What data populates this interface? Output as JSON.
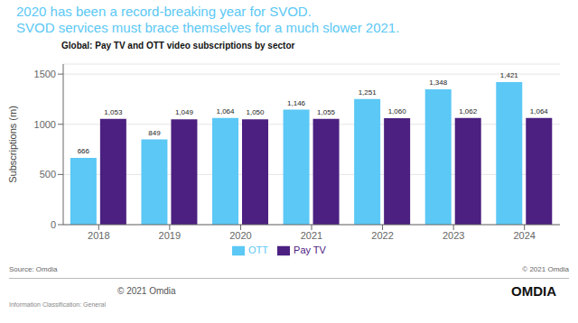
{
  "chart_data": {
    "type": "bar",
    "title": "2020 has been a record-breaking year for SVOD.\nSVOD services must brace themselves for a much slower 2021.",
    "subtitle": "Global: Pay TV and OTT video subscriptions by sector",
    "categories": [
      "2018",
      "2019",
      "2020",
      "2021",
      "2022",
      "2023",
      "2024"
    ],
    "series": [
      {
        "name": "OTT",
        "color": "#5BC8F5",
        "values": [
          666,
          849,
          1064,
          1146,
          1251,
          1348,
          1421
        ],
        "value_labels": [
          "666",
          "849",
          "1,064",
          "1,146",
          "1,251",
          "1,348",
          "1,421"
        ]
      },
      {
        "name": "Pay TV",
        "color": "#4B2080",
        "values": [
          1053,
          1049,
          1050,
          1055,
          1060,
          1062,
          1064
        ],
        "value_labels": [
          "1,053",
          "1,049",
          "1,050",
          "1,055",
          "1,060",
          "1,062",
          "1,064"
        ]
      }
    ],
    "ylabel": "Subscriptions  (m)",
    "ylim": [
      0,
      1600
    ],
    "yticks": [
      0,
      500,
      1000,
      1500
    ],
    "grid": true,
    "legend": "bottom",
    "data_labels": true,
    "color": "#5BC8F5",
    "annotations": [
      "Source: Omdia",
      "© 2021 Omdia",
      "© 2021 Omdia",
      "OMDIA",
      "Information Classification: General"
    ]
  }
}
